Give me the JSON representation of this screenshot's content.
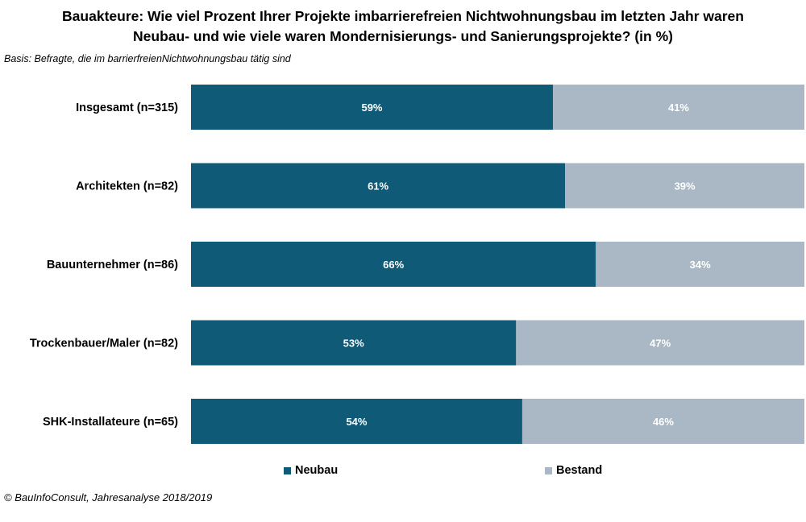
{
  "title_line1": "Bauakteure: Wie viel Prozent Ihrer Projekte imbarrierefreien Nichtwohnungsbau  im letzten Jahr waren",
  "title_line2": "Neubau-  und wie viele waren Mondernisierungs-  und Sanierungsprojekte? (in %)",
  "basis": "Basis: Befragte, die im barrierfreienNichtwohnungsbau tätig sind",
  "source": "© BauInfoConsult, Jahresanalyse 2018/2019",
  "colors": {
    "neubau": "#0f5a76",
    "bestand": "#a9b8c4"
  },
  "chart_data": {
    "type": "bar",
    "orientation": "horizontal",
    "stacked": true,
    "percent_stacked": true,
    "categories": [
      "Insgesamt (n=315)",
      "Architekten (n=82)",
      "Bauunternehmer (n=86)",
      "Trockenbauer/Maler (n=82)",
      "SHK-Installateure (n=65)"
    ],
    "series": [
      {
        "name": "Neubau",
        "values": [
          59,
          61,
          66,
          53,
          54
        ],
        "labels": [
          "59%",
          "61%",
          "66%",
          "53%",
          "54%"
        ]
      },
      {
        "name": "Bestand",
        "values": [
          41,
          39,
          34,
          47,
          46
        ],
        "labels": [
          "41%",
          "39%",
          "34%",
          "47%",
          "46%"
        ]
      }
    ],
    "xlim": [
      0,
      100
    ],
    "grid": false,
    "legend_position": "bottom"
  }
}
